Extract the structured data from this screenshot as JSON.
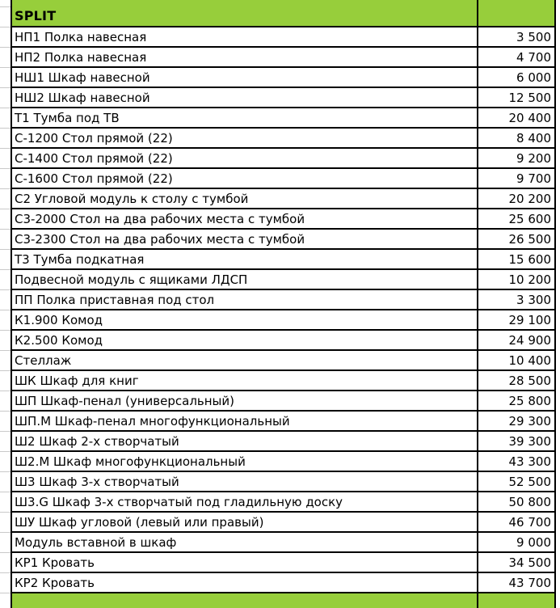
{
  "sheet": {
    "header": {
      "title": "SPLIT",
      "price_header": ""
    },
    "footer": {
      "name": "",
      "price": ""
    },
    "colors": {
      "header_green": "#97CE3B",
      "border_black": "#000000",
      "margin_gridline": "#c9c9c9",
      "text": "#000000"
    },
    "items": [
      {
        "name": "НП1 Полка навесная",
        "price": "3 500"
      },
      {
        "name": "НП2 Полка навесная",
        "price": "4 700"
      },
      {
        "name": "НШ1 Шкаф навесной",
        "price": "6 000"
      },
      {
        "name": "НШ2 Шкаф навесной",
        "price": "12 500"
      },
      {
        "name": "Т1 Тумба под ТВ",
        "price": "20 400"
      },
      {
        "name": "С-1200 Стол прямой (22)",
        "price": "8 400"
      },
      {
        "name": "С-1400 Стол прямой (22)",
        "price": "9 200"
      },
      {
        "name": "С-1600 Стол прямой (22)",
        "price": "9 700"
      },
      {
        "name": "С2 Угловой модуль к столу с тумбой",
        "price": "20 200"
      },
      {
        "name": "С3-2000 Стол на два рабочих места с тумбой",
        "price": "25 600"
      },
      {
        "name": "С3-2300 Стол на два рабочих места с тумбой",
        "price": "26 500"
      },
      {
        "name": "Т3 Тумба подкатная",
        "price": "15 600"
      },
      {
        "name": "Подвесной модуль с ящиками ЛДСП",
        "price": "10 200"
      },
      {
        "name": "ПП Полка приставная под стол",
        "price": "3 300"
      },
      {
        "name": "К1.900 Комод",
        "price": "29 100"
      },
      {
        "name": "К2.500 Комод",
        "price": "24 900"
      },
      {
        "name": "Стеллаж",
        "price": "10 400"
      },
      {
        "name": "ШК Шкаф для книг",
        "price": "28 500"
      },
      {
        "name": "ШП Шкаф-пенал (универсальный)",
        "price": "25 800"
      },
      {
        "name": "ШП.М Шкаф-пенал многофункциональный",
        "price": "29 300"
      },
      {
        "name": "Ш2 Шкаф 2-х створчатый",
        "price": "39 300"
      },
      {
        "name": "Ш2.М Шкаф многофункциональный",
        "price": "43 300"
      },
      {
        "name": "Ш3 Шкаф 3-х створчатый",
        "price": "52 500"
      },
      {
        "name": "Ш3.G Шкаф 3-х створчатый под гладильную доску",
        "price": "50 800"
      },
      {
        "name": "ШУ Шкаф угловой (левый или правый)",
        "price": "46 700"
      },
      {
        "name": "Модуль вставной в шкаф",
        "price": "9 000"
      },
      {
        "name": "КР1 Кровать",
        "price": "34 500"
      },
      {
        "name": "КР2 Кровать",
        "price": "43 700"
      }
    ]
  }
}
